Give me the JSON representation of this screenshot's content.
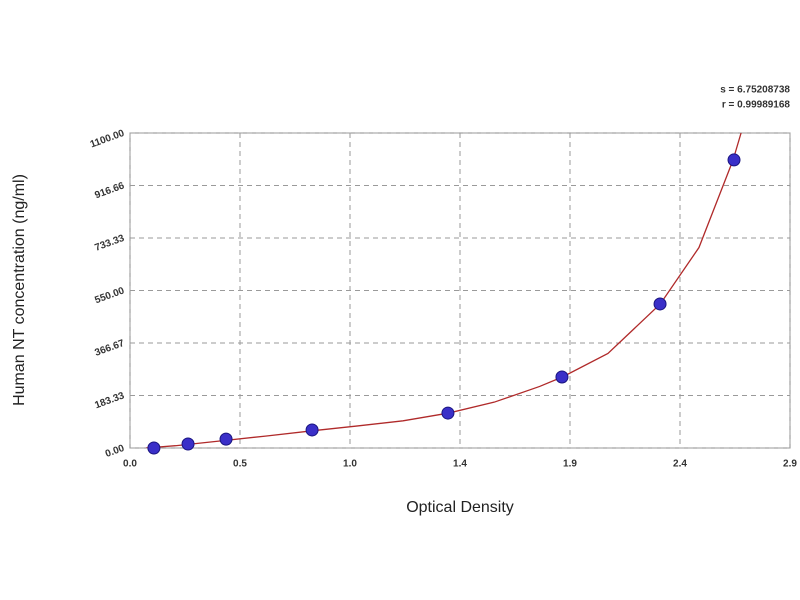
{
  "chart_data": {
    "type": "scatter",
    "x_label": "Optical Density",
    "y_label": "Human NT concentration (ng/ml)",
    "annotations": [
      "s = 6.75208738",
      "r = 0.99989168"
    ],
    "x": [
      0.105,
      0.255,
      0.422,
      0.8,
      1.397,
      1.898,
      2.329,
      2.654
    ],
    "values": [
      0,
      14,
      31,
      63,
      122,
      248,
      503,
      1006
    ],
    "color": "#3a2fc8",
    "curve": {
      "color": "#b02a2a",
      "x": [
        0.07,
        0.2,
        0.4,
        0.6,
        0.8,
        1.0,
        1.2,
        1.4,
        1.6,
        1.8,
        1.9,
        2.1,
        2.33,
        2.5,
        2.65,
        2.685
      ],
      "y": [
        0,
        8,
        25,
        42,
        60,
        77,
        95,
        122,
        160,
        215,
        248,
        330,
        503,
        700,
        1006,
        1100
      ]
    },
    "xlim": [
      0,
      2.9
    ],
    "xticks": [
      {
        "value": 0,
        "label": "0.0"
      },
      {
        "value": 0.4833,
        "label": "0.5"
      },
      {
        "value": 0.9667,
        "label": "1.0"
      },
      {
        "value": 1.45,
        "label": "1.4"
      },
      {
        "value": 1.9333,
        "label": "1.9"
      },
      {
        "value": 2.4167,
        "label": "2.4"
      },
      2.9
    ],
    "ylim": [
      0,
      1100
    ],
    "yticks": [
      {
        "value": 0,
        "label": "0.00"
      },
      183.33,
      366.67,
      {
        "value": 550,
        "label": "550.00"
      },
      733.33,
      916.66,
      {
        "value": 1100,
        "label": "1100.00"
      }
    ],
    "grid": true
  }
}
